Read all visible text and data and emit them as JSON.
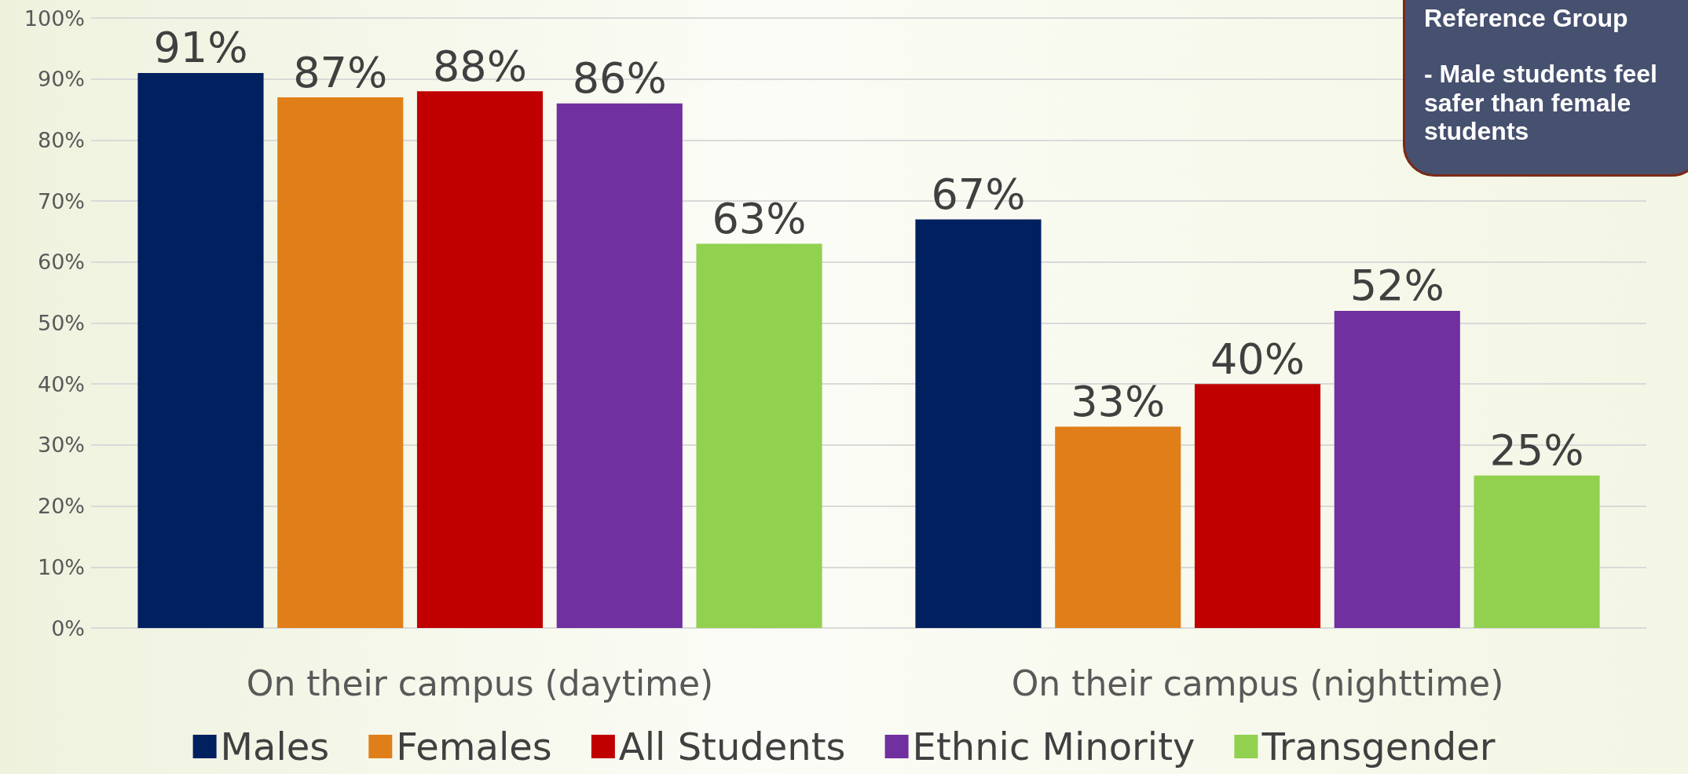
{
  "chart_data": {
    "type": "bar",
    "categories": [
      "On their campus (daytime)",
      "On their campus (nighttime)"
    ],
    "series": [
      {
        "name": "Males",
        "color": "#002060",
        "values": [
          91,
          67
        ]
      },
      {
        "name": "Females",
        "color": "#e07f1a",
        "values": [
          87,
          33
        ]
      },
      {
        "name": "All Students",
        "color": "#c00000",
        "values": [
          88,
          40
        ]
      },
      {
        "name": "Ethnic Minority",
        "color": "#7030a0",
        "values": [
          86,
          52
        ]
      },
      {
        "name": "Transgender",
        "color": "#92d050",
        "values": [
          63,
          25
        ]
      }
    ],
    "ylim": [
      0,
      100
    ],
    "yticks": [
      {
        "value": 0,
        "label": "0%"
      },
      {
        "value": 10,
        "label": "10%"
      },
      {
        "value": 20,
        "label": "20%"
      },
      {
        "value": 30,
        "label": "30%"
      },
      {
        "value": 40,
        "label": "40%"
      },
      {
        "value": 50,
        "label": "50%"
      },
      {
        "value": 60,
        "label": "60%"
      },
      {
        "value": 70,
        "label": "70%"
      },
      {
        "value": 80,
        "label": "80%"
      },
      {
        "value": 90,
        "label": "90%"
      },
      {
        "value": 100,
        "label": "100%"
      }
    ],
    "value_labels": [
      [
        "91%",
        "67%"
      ],
      [
        "87%",
        "33%"
      ],
      [
        "88%",
        "40%"
      ],
      [
        "86%",
        "52%"
      ],
      [
        "63%",
        "25%"
      ]
    ],
    "grid": "y",
    "legend": "bottom",
    "annotations": [
      "Reference Group",
      "- Male students feel safer than female students"
    ]
  }
}
